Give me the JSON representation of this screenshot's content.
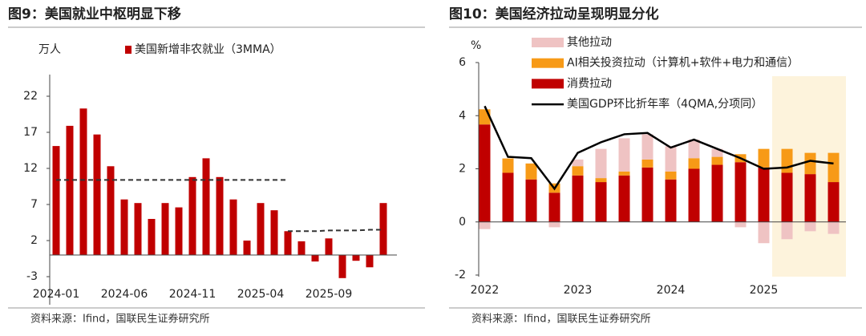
{
  "chart_data": [
    {
      "type": "bar",
      "title": "图9：美国就业中枢明显下移",
      "unit_label": "万人",
      "source": "资料来源：Ifind，国联民生证券研究所",
      "categories": [
        "2024-01",
        null,
        null,
        null,
        null,
        "2024-06",
        null,
        null,
        null,
        null,
        "2024-11",
        null,
        null,
        null,
        null,
        "2025-04",
        null,
        null,
        null,
        null,
        "2025-09",
        null,
        null,
        null,
        null
      ],
      "series": [
        {
          "name": "美国新增非农就业（3MMA）",
          "color": "#c00000",
          "values": [
            15.1,
            17.9,
            20.3,
            16.7,
            12.3,
            7.7,
            7.2,
            5.0,
            7.2,
            6.6,
            10.8,
            13.4,
            10.8,
            7.7,
            2.0,
            7.2,
            6.2,
            3.3,
            1.9,
            -0.9,
            2.3,
            -3.2,
            -0.8,
            -1.7,
            7.2
          ]
        }
      ],
      "trend_lines": [
        {
          "color": "#333333",
          "style": "dashed",
          "values": [
            10.4,
            10.4,
            10.4,
            10.4,
            10.4,
            10.4,
            10.4,
            10.4,
            10.4,
            10.4,
            10.4,
            10.4,
            10.4,
            10.4,
            10.4,
            10.4,
            10.4,
            10.4,
            null,
            null,
            null,
            null,
            null,
            null,
            null
          ]
        },
        {
          "color": "#333333",
          "style": "dashed",
          "values": [
            null,
            null,
            null,
            null,
            null,
            null,
            null,
            null,
            null,
            null,
            null,
            null,
            null,
            null,
            null,
            null,
            null,
            3.3,
            3.3,
            3.3,
            3.4,
            3.4,
            3.4,
            3.5,
            3.5
          ]
        }
      ],
      "ylim": [
        -4,
        25
      ],
      "yticks": [
        -3,
        2,
        7,
        12,
        17,
        22
      ]
    },
    {
      "type": "bar",
      "stacked": true,
      "title": "图10：美国经济拉动呈现明显分化",
      "unit_label": "%",
      "source": "资料来源：Ifind，国联民生证券研究所",
      "categories": [
        "2022",
        null,
        null,
        null,
        "2023",
        null,
        null,
        null,
        "2024",
        null,
        null,
        null,
        "2025",
        null,
        null,
        null
      ],
      "series": [
        {
          "name": "其他拉动",
          "color": "#efc3c3",
          "values": [
            -0.27,
            0,
            0,
            -0.2,
            0.25,
            1.1,
            1.25,
            0.95,
            0.95,
            0.7,
            0.3,
            -0.2,
            -0.8,
            -0.65,
            -0.35,
            -0.45
          ]
        },
        {
          "name": "AI相关投资拉动（计算机+软件+电力和通信）",
          "color": "#f79a17",
          "values": [
            0.57,
            0.54,
            0.6,
            0.35,
            0.35,
            0.15,
            0.15,
            0.3,
            0.3,
            0.4,
            0.3,
            0.3,
            0.7,
            0.9,
            0.8,
            1.1
          ]
        },
        {
          "name": "消费拉动",
          "color": "#c00000",
          "values": [
            3.67,
            1.85,
            1.6,
            1.1,
            1.75,
            1.5,
            1.75,
            2.05,
            1.6,
            2.0,
            2.15,
            2.25,
            2.05,
            1.85,
            1.8,
            1.5
          ]
        },
        {
          "name": "美国GDP环比折年率（4QMA,分项同）",
          "color": "#000000",
          "type": "line",
          "values": [
            4.36,
            2.45,
            2.4,
            1.25,
            2.6,
            3.0,
            3.3,
            3.35,
            2.8,
            3.1,
            2.75,
            2.4,
            2.0,
            2.05,
            2.3,
            2.2
          ]
        }
      ],
      "ylim": [
        -2,
        6
      ],
      "yticks": [
        -2,
        0,
        2,
        4,
        6
      ]
    }
  ]
}
